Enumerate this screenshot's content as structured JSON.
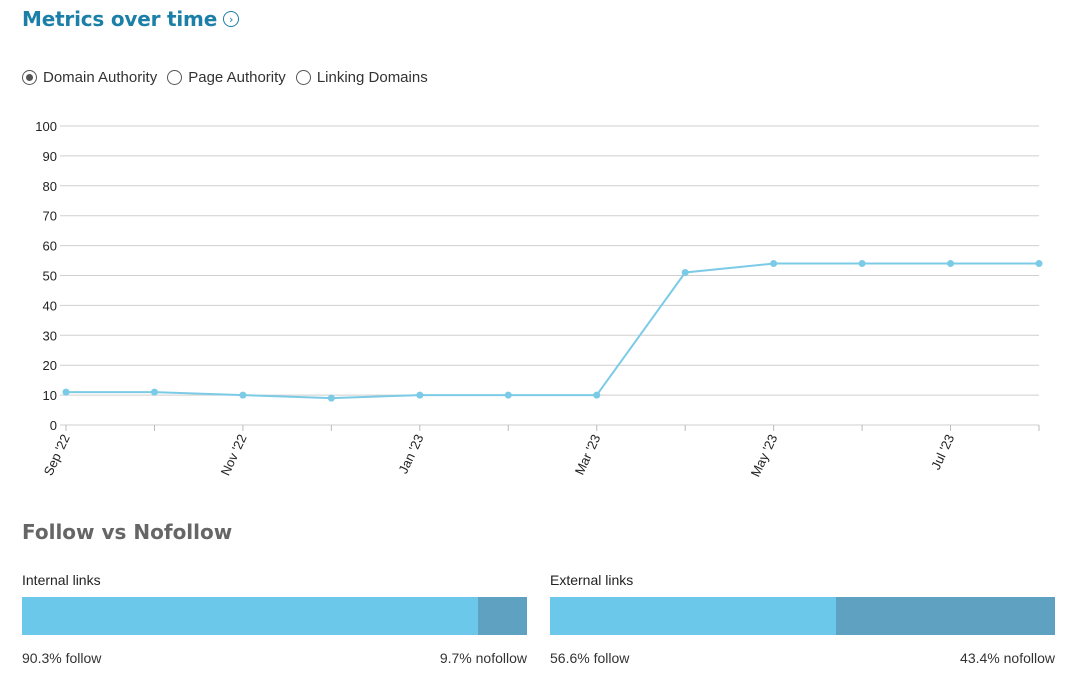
{
  "header": {
    "title": "Metrics over time",
    "info_icon": "chevron-right-circle-icon"
  },
  "metric_options": [
    {
      "label": "Domain Authority",
      "selected": true
    },
    {
      "label": "Page Authority",
      "selected": false
    },
    {
      "label": "Linking Domains",
      "selected": false
    }
  ],
  "chart_data": {
    "type": "line",
    "title": "",
    "xlabel": "",
    "ylabel": "",
    "ylim": [
      0,
      100
    ],
    "yticks": [
      0,
      10,
      20,
      30,
      40,
      50,
      60,
      70,
      80,
      90,
      100
    ],
    "x_tick_labels": [
      "Sep '22",
      "Nov '22",
      "Jan '23",
      "Mar '23",
      "May '23",
      "Jul '23"
    ],
    "grid": true,
    "line_color": "#7ccbe6",
    "series": [
      {
        "x": [
          "2022-09",
          "2022-10",
          "2022-11",
          "2022-12",
          "2023-01",
          "2023-02",
          "2023-03",
          "2023-04",
          "2023-05",
          "2023-06",
          "2023-07",
          "2023-08"
        ],
        "values": [
          11,
          11,
          10,
          9,
          10,
          10,
          10,
          51,
          54,
          54,
          54,
          54
        ]
      }
    ]
  },
  "follow_section": {
    "title": "Follow vs Nofollow",
    "colors": {
      "follow": "#6cc8ea",
      "nofollow": "#5fa1c0"
    },
    "bars": [
      {
        "label": "Internal links",
        "follow_pct": 90.3,
        "follow_text": "90.3% follow",
        "nofollow_text": "9.7% nofollow"
      },
      {
        "label": "External links",
        "follow_pct": 56.6,
        "follow_text": "56.6% follow",
        "nofollow_text": "43.4% nofollow"
      }
    ]
  }
}
